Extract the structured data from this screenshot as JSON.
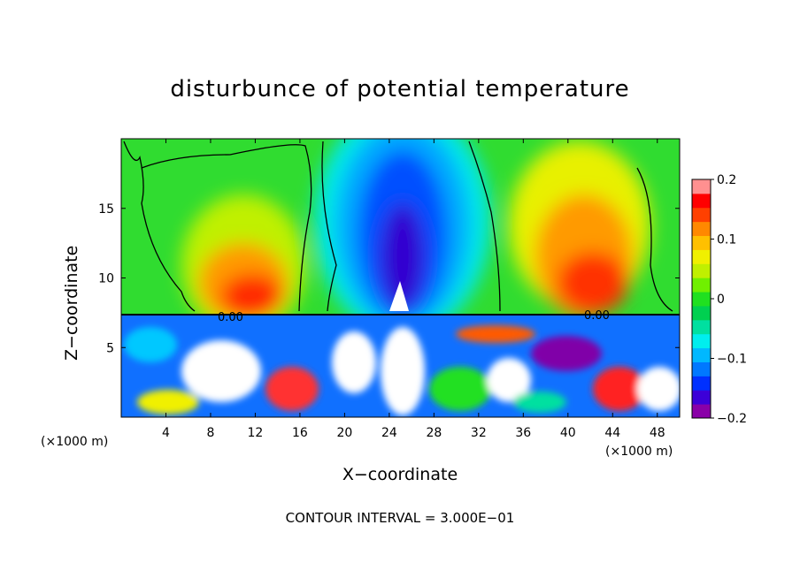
{
  "chart_data": {
    "type": "heatmap",
    "title": "disturbunce of potential temperature",
    "xlabel": "X−coordinate",
    "ylabel": "Z−coordinate",
    "x_unit": "(×1000 m)",
    "y_unit": "(×1000 m)",
    "xlim": [
      0,
      50
    ],
    "ylim": [
      0,
      20
    ],
    "x_ticks": [
      4,
      8,
      12,
      16,
      20,
      24,
      28,
      32,
      36,
      40,
      44,
      48
    ],
    "y_ticks": [
      5,
      10,
      15
    ],
    "colorbar": {
      "ticks": [
        0.2,
        0.1,
        0,
        -0.1,
        -0.2
      ],
      "tick_labels": [
        "0.2",
        "0.1",
        "0",
        "−0.1",
        "−0.2"
      ],
      "range": [
        -0.2,
        0.2
      ],
      "colors": [
        "#8a00a8",
        "#3c00d8",
        "#0030ff",
        "#0078ff",
        "#00b8ff",
        "#00eeee",
        "#00e0a0",
        "#00d050",
        "#20e020",
        "#70f000",
        "#c0f000",
        "#f0f000",
        "#ffc000",
        "#ff8800",
        "#ff4000",
        "#ff0000",
        "#ff9090"
      ]
    },
    "contour_label": "0.00",
    "footer": "CONTOUR INTERVAL = 3.000E−01"
  }
}
